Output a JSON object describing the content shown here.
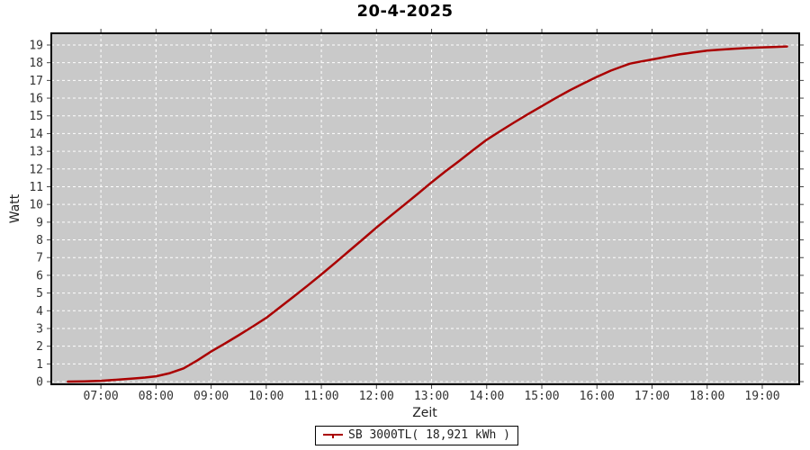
{
  "chart_data": {
    "type": "line",
    "title": "20-4-2025",
    "xlabel": "Zeit",
    "ylabel": "Watt",
    "legend_position": "bottom-center",
    "grid": "white-dashed",
    "plot_bg_color": "#c9c9c9",
    "grid_color": "#ffffff",
    "border_color": "#000000",
    "tick_color": "#444444",
    "xlim_hours": [
      6.1,
      19.67
    ],
    "ylim": [
      -0.15,
      19.66
    ],
    "y_ticks": [
      0,
      1,
      2,
      3,
      4,
      5,
      6,
      7,
      8,
      9,
      10,
      11,
      12,
      13,
      14,
      15,
      16,
      17,
      18,
      19
    ],
    "x_ticks": [
      {
        "hour": 7,
        "label": "07:00"
      },
      {
        "hour": 8,
        "label": "08:00"
      },
      {
        "hour": 9,
        "label": "09:00"
      },
      {
        "hour": 10,
        "label": "10:00"
      },
      {
        "hour": 11,
        "label": "11:00"
      },
      {
        "hour": 12,
        "label": "12:00"
      },
      {
        "hour": 13,
        "label": "13:00"
      },
      {
        "hour": 14,
        "label": "14:00"
      },
      {
        "hour": 15,
        "label": "15:00"
      },
      {
        "hour": 16,
        "label": "16:00"
      },
      {
        "hour": 17,
        "label": "17:00"
      },
      {
        "hour": 18,
        "label": "18:00"
      },
      {
        "hour": 19,
        "label": "19:00"
      }
    ],
    "series": [
      {
        "name": "SB 3000TL( 18,921 kWh )",
        "color": "#aa0000",
        "total_kwh_label": "18,921 kWh",
        "points": [
          [
            6.4,
            0.0
          ],
          [
            6.7,
            0.02
          ],
          [
            7.0,
            0.05
          ],
          [
            7.3,
            0.11
          ],
          [
            7.6,
            0.18
          ],
          [
            7.8,
            0.23
          ],
          [
            8.0,
            0.3
          ],
          [
            8.25,
            0.48
          ],
          [
            8.5,
            0.75
          ],
          [
            8.75,
            1.2
          ],
          [
            9.0,
            1.7
          ],
          [
            9.25,
            2.15
          ],
          [
            9.5,
            2.62
          ],
          [
            9.75,
            3.1
          ],
          [
            10.0,
            3.6
          ],
          [
            10.25,
            4.2
          ],
          [
            10.5,
            4.8
          ],
          [
            10.75,
            5.42
          ],
          [
            11.0,
            6.05
          ],
          [
            11.25,
            6.7
          ],
          [
            11.5,
            7.37
          ],
          [
            11.75,
            8.03
          ],
          [
            12.0,
            8.7
          ],
          [
            12.25,
            9.34
          ],
          [
            12.5,
            9.97
          ],
          [
            12.75,
            10.6
          ],
          [
            13.0,
            11.25
          ],
          [
            13.25,
            11.87
          ],
          [
            13.5,
            12.45
          ],
          [
            13.75,
            13.06
          ],
          [
            14.0,
            13.65
          ],
          [
            14.25,
            14.15
          ],
          [
            14.5,
            14.63
          ],
          [
            14.75,
            15.1
          ],
          [
            15.0,
            15.55
          ],
          [
            15.25,
            16.0
          ],
          [
            15.5,
            16.43
          ],
          [
            15.75,
            16.82
          ],
          [
            16.0,
            17.2
          ],
          [
            16.25,
            17.55
          ],
          [
            16.45,
            17.78
          ],
          [
            16.6,
            17.95
          ],
          [
            16.8,
            18.07
          ],
          [
            17.0,
            18.18
          ],
          [
            17.25,
            18.33
          ],
          [
            17.5,
            18.47
          ],
          [
            17.75,
            18.58
          ],
          [
            18.0,
            18.68
          ],
          [
            18.25,
            18.74
          ],
          [
            18.5,
            18.79
          ],
          [
            18.75,
            18.83
          ],
          [
            19.0,
            18.87
          ],
          [
            19.2,
            18.89
          ],
          [
            19.45,
            18.92
          ]
        ]
      }
    ]
  },
  "legend": {
    "label": "SB 3000TL( 18,921 kWh )"
  }
}
